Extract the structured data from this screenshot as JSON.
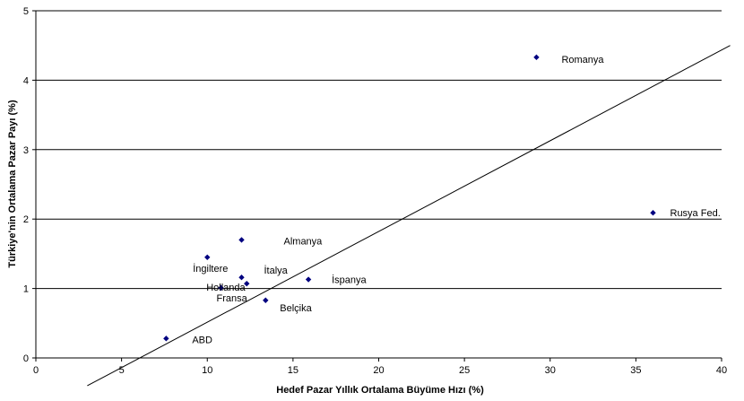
{
  "chart_data": {
    "type": "scatter",
    "xlabel": "Hedef Pazar Yıllık Ortalama Büyüme Hızı (%)",
    "ylabel": "Türkiye'nin Ortalama Pazar Payı (%)",
    "xlim": [
      0,
      40
    ],
    "ylim": [
      0,
      5
    ],
    "x_ticks": [
      "0",
      "5",
      "10",
      "15",
      "20",
      "25",
      "30",
      "35",
      "40"
    ],
    "y_ticks": [
      "0",
      "1",
      "2",
      "3",
      "4",
      "5"
    ],
    "grid": "horizontal",
    "legend": "none",
    "marker_color": "#000080",
    "points": [
      {
        "label": "Romanya",
        "x": 29.2,
        "y": 4.33
      },
      {
        "label": "Rusya Fed.",
        "x": 36.0,
        "y": 2.09
      },
      {
        "label": "Almanya",
        "x": 12.0,
        "y": 1.7
      },
      {
        "label": "İngiltere",
        "x": 10.0,
        "y": 1.45
      },
      {
        "label": "İtalya",
        "x": 12.0,
        "y": 1.16
      },
      {
        "label": "Hollanda",
        "x": 12.3,
        "y": 1.07
      },
      {
        "label": "İspanya",
        "x": 15.9,
        "y": 1.13
      },
      {
        "label": "Fransa",
        "x": 10.8,
        "y": 1.01
      },
      {
        "label": "Belçika",
        "x": 13.4,
        "y": 0.83
      },
      {
        "label": "ABD",
        "x": 7.6,
        "y": 0.28
      }
    ],
    "trendline": {
      "x": [
        3,
        40.5
      ],
      "y": [
        -0.4,
        4.5
      ]
    }
  }
}
